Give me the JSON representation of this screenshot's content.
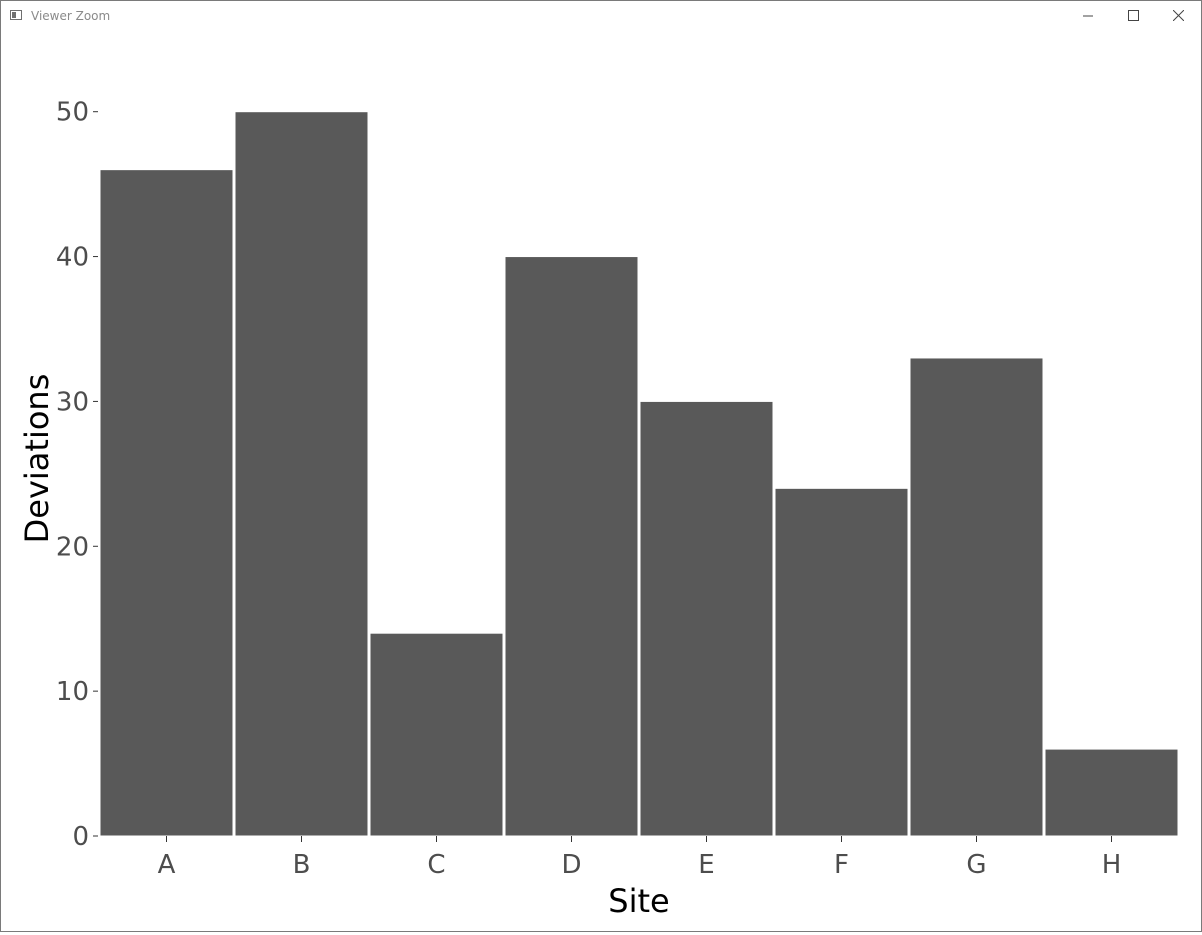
{
  "window": {
    "title": "Viewer Zoom",
    "controls": {
      "minimize_icon": "minimize-icon",
      "maximize_icon": "maximize-icon",
      "close_icon": "close-icon"
    }
  },
  "chart_data": {
    "type": "bar",
    "title": "",
    "xlabel": "Site",
    "ylabel": "Deviations",
    "categories": [
      "A",
      "B",
      "C",
      "D",
      "E",
      "F",
      "G",
      "H"
    ],
    "values": [
      46,
      50,
      14,
      40,
      30,
      24,
      33,
      6
    ],
    "ylim": [
      0,
      50
    ],
    "yticks": [
      0,
      10,
      20,
      30,
      40,
      50
    ],
    "grid": false,
    "legend": "none",
    "colors": {
      "bar": "#595959",
      "bar_outline": "#ffffff",
      "tick_label": "#4d4d4d",
      "axis_title": "#000000"
    }
  }
}
